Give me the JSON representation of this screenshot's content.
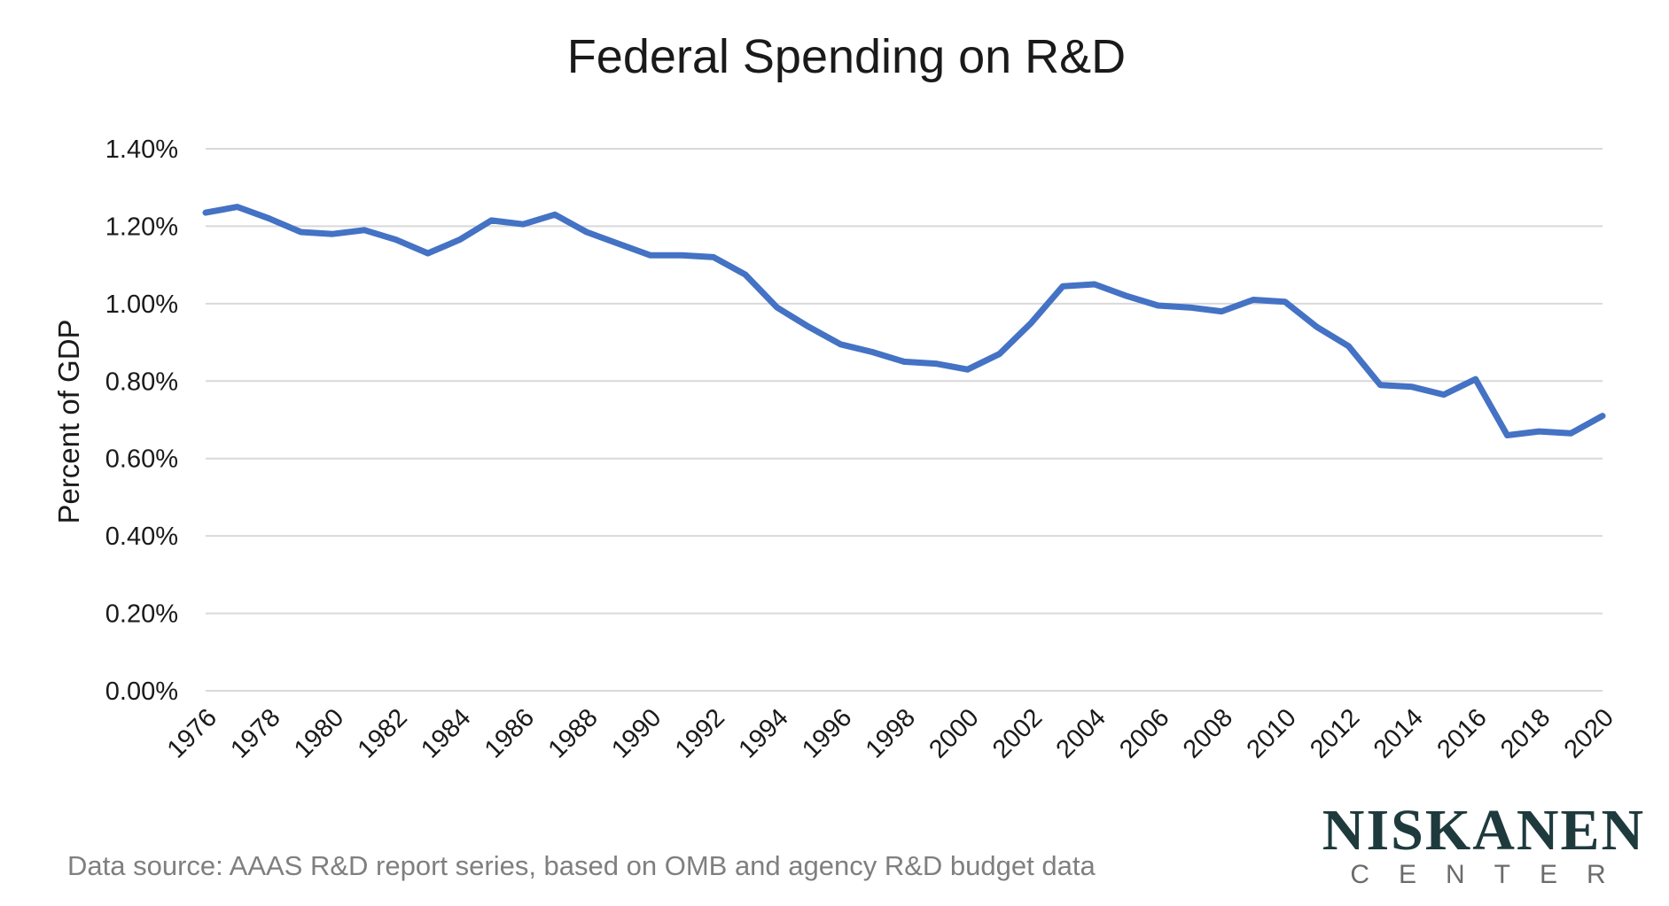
{
  "chart_data": {
    "type": "line",
    "title": "Federal Spending on R&D",
    "xlabel": "",
    "ylabel": "Percent of GDP",
    "ylim": [
      0,
      1.4
    ],
    "yticks": [
      "0.00%",
      "0.20%",
      "0.40%",
      "0.60%",
      "0.80%",
      "1.00%",
      "1.20%",
      "1.40%"
    ],
    "ytick_values": [
      0,
      0.2,
      0.4,
      0.6,
      0.8,
      1.0,
      1.2,
      1.4
    ],
    "xticks": [
      "1976",
      "1978",
      "1980",
      "1982",
      "1984",
      "1986",
      "1988",
      "1990",
      "1992",
      "1994",
      "1996",
      "1998",
      "2000",
      "2002",
      "2004",
      "2006",
      "2008",
      "2010",
      "2012",
      "2014",
      "2016",
      "2018",
      "2020"
    ],
    "grid": true,
    "series": [
      {
        "name": "Federal R&D spending",
        "color": "#4472c4",
        "x": [
          1976,
          1977,
          1978,
          1979,
          1980,
          1981,
          1982,
          1983,
          1984,
          1985,
          1986,
          1987,
          1988,
          1989,
          1990,
          1991,
          1992,
          1993,
          1994,
          1995,
          1996,
          1997,
          1998,
          1999,
          2000,
          2001,
          2002,
          2003,
          2004,
          2005,
          2006,
          2007,
          2008,
          2009,
          2010,
          2011,
          2012,
          2013,
          2014,
          2015,
          2016,
          2017,
          2018,
          2019,
          2020
        ],
        "values": [
          1.235,
          1.25,
          1.22,
          1.185,
          1.18,
          1.19,
          1.165,
          1.13,
          1.165,
          1.215,
          1.205,
          1.23,
          1.185,
          1.155,
          1.125,
          1.125,
          1.12,
          1.075,
          0.99,
          0.94,
          0.895,
          0.875,
          0.85,
          0.845,
          0.83,
          0.87,
          0.95,
          1.045,
          1.05,
          1.02,
          0.995,
          0.99,
          0.98,
          1.01,
          1.005,
          0.94,
          0.89,
          0.79,
          0.785,
          0.765,
          0.805,
          0.66,
          0.67,
          0.665,
          0.71
        ]
      }
    ]
  },
  "footer": {
    "source": "Data source: AAAS R&D report series, based on OMB and agency R&D budget data"
  },
  "logo": {
    "name": "NISKANEN",
    "subtitle": "CENTER"
  }
}
